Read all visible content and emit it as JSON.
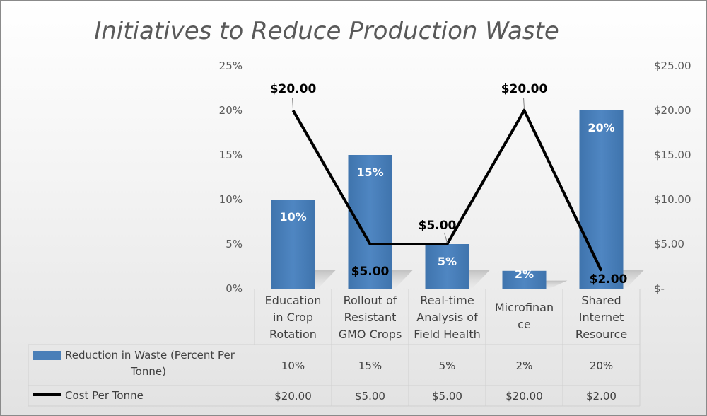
{
  "chart_data": {
    "type": "bar",
    "title": "Initiatives to Reduce Production Waste",
    "categories": [
      "Education in Crop Rotation",
      "Rollout of Resistant GMO Crops",
      "Real-time Analysis of Field Health",
      "Microfinance",
      "Shared Internet Resource"
    ],
    "category_lines": [
      [
        "Education",
        "in Crop",
        "Rotation"
      ],
      [
        "Rollout of",
        "Resistant",
        "GMO Crops"
      ],
      [
        "Real-time",
        "Analysis of",
        "Field Health"
      ],
      [
        "Microfinan",
        "ce"
      ],
      [
        "Shared",
        "Internet",
        "Resource"
      ]
    ],
    "series": [
      {
        "name": "Reduction in Waste (Percent Per Tonne)",
        "type": "bar",
        "axis": "left",
        "color": "#4a7fb8",
        "values": [
          10,
          15,
          5,
          2,
          20
        ],
        "labels": [
          "10%",
          "15%",
          "5%",
          "2%",
          "20%"
        ]
      },
      {
        "name": "Cost Per Tonne",
        "type": "line",
        "axis": "right",
        "color": "#000000",
        "values": [
          20,
          5,
          5,
          20,
          2
        ],
        "labels": [
          "$20.00",
          "$5.00",
          "$5.00",
          "$20.00",
          "$2.00"
        ]
      }
    ],
    "left_axis": {
      "min": 0,
      "max": 25,
      "ticks": [
        "0%",
        "5%",
        "10%",
        "15%",
        "20%",
        "25%"
      ]
    },
    "right_axis": {
      "min": 0,
      "max": 25,
      "ticks": [
        "$-",
        "$5.00",
        "$10.00",
        "$15.00",
        "$20.00",
        "$25.00"
      ]
    },
    "legend": "data-table",
    "legend_lines": [
      [
        "Reduction in Waste (Percent Per",
        "Tonne)"
      ],
      [
        "Cost Per Tonne"
      ]
    ],
    "grid": false
  }
}
